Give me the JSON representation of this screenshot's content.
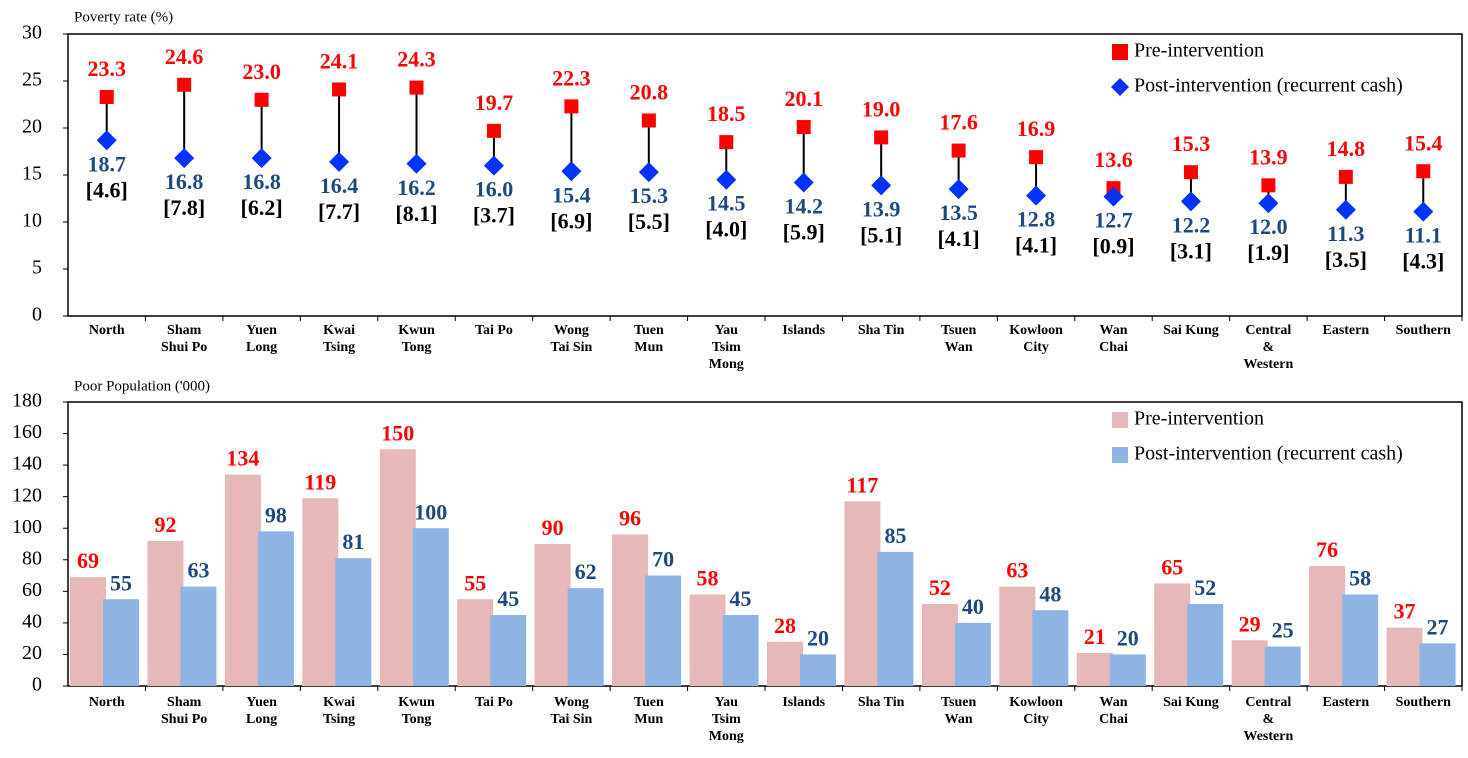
{
  "chart_data": [
    {
      "type": "dumbbell",
      "axis_label": "Poverty rate (%)",
      "categories": [
        "North",
        "Sham\nShui Po",
        "Yuen\nLong",
        "Kwai\nTsing",
        "Kwun\nTong",
        "Tai Po",
        "Wong\nTai Sin",
        "Tuen\nMun",
        "Yau\nTsim\nMong",
        "Islands",
        "Sha Tin",
        "Tsuen\nWan",
        "Kowloon\nCity",
        "Wan\nChai",
        "Sai Kung",
        "Central\n&\nWestern",
        "Eastern",
        "Southern"
      ],
      "series": [
        {
          "name": "Pre-intervention",
          "color": "#ff0000",
          "label_color": "#ff0000",
          "values": [
            23.3,
            24.6,
            23.0,
            24.1,
            24.3,
            19.7,
            22.3,
            20.8,
            18.5,
            20.1,
            19.0,
            17.6,
            16.9,
            13.6,
            15.3,
            13.9,
            14.8,
            15.4
          ],
          "value_labels": [
            "23.3",
            "24.6",
            "23.0",
            "24.1",
            "24.3",
            "19.7",
            "22.3",
            "20.8",
            "18.5",
            "20.1",
            "19.0",
            "17.6",
            "16.9",
            "13.6",
            "15.3",
            "13.9",
            "14.8",
            "15.4"
          ]
        },
        {
          "name": "Post-intervention (recurrent cash)",
          "color": "#0033ff",
          "label_color": "#1f497d",
          "values": [
            18.7,
            16.8,
            16.8,
            16.4,
            16.2,
            16.0,
            15.4,
            15.3,
            14.5,
            14.2,
            13.9,
            13.5,
            12.8,
            12.7,
            12.2,
            12.0,
            11.3,
            11.1
          ],
          "value_labels": [
            "18.7",
            "16.8",
            "16.8",
            "16.4",
            "16.2",
            "16.0",
            "15.4",
            "15.3",
            "14.5",
            "14.2",
            "13.9",
            "13.5",
            "12.8",
            "12.7",
            "12.2",
            "12.0",
            "11.3",
            "11.1"
          ]
        }
      ],
      "differences": [
        4.6,
        7.8,
        6.2,
        7.7,
        8.1,
        3.7,
        6.9,
        5.5,
        4.0,
        5.9,
        5.1,
        4.1,
        4.1,
        0.9,
        3.1,
        1.9,
        3.5,
        4.3
      ],
      "difference_labels": [
        "[4.6]",
        "[7.8]",
        "[6.2]",
        "[7.7]",
        "[8.1]",
        "[3.7]",
        "[6.9]",
        "[5.5]",
        "[4.0]",
        "[5.9]",
        "[5.1]",
        "[4.1]",
        "[4.1]",
        "[0.9]",
        "[3.1]",
        "[1.9]",
        "[3.5]",
        "[4.3]"
      ],
      "ylim": [
        0,
        30
      ],
      "yticks": [
        0,
        5,
        10,
        15,
        20,
        25,
        30
      ],
      "grid": false,
      "legend": "upper right"
    },
    {
      "type": "bar",
      "axis_label": "Poor Population ('000)",
      "categories": [
        "North",
        "Sham\nShui Po",
        "Yuen\nLong",
        "Kwai\nTsing",
        "Kwun\nTong",
        "Tai Po",
        "Wong\nTai Sin",
        "Tuen\nMun",
        "Yau\nTsim\nMong",
        "Islands",
        "Sha Tin",
        "Tsuen\nWan",
        "Kowloon\nCity",
        "Wan\nChai",
        "Sai Kung",
        "Central\n&\nWestern",
        "Eastern",
        "Southern"
      ],
      "series": [
        {
          "name": "Pre-intervention",
          "color": "#e6b9b8",
          "label_color": "#ff0000",
          "values": [
            69,
            92,
            134,
            119,
            150,
            55,
            90,
            96,
            58,
            28,
            117,
            52,
            63,
            21,
            65,
            29,
            76,
            37
          ]
        },
        {
          "name": "Post-intervention (recurrent cash)",
          "color": "#8db4e2",
          "label_color": "#1f497d",
          "values": [
            55,
            63,
            98,
            81,
            100,
            45,
            62,
            70,
            45,
            20,
            85,
            40,
            48,
            20,
            52,
            25,
            58,
            27
          ]
        }
      ],
      "ylim": [
        0,
        180
      ],
      "yticks": [
        0,
        20,
        40,
        60,
        80,
        100,
        120,
        140,
        160,
        180
      ],
      "grid": false,
      "legend": "upper right"
    }
  ]
}
